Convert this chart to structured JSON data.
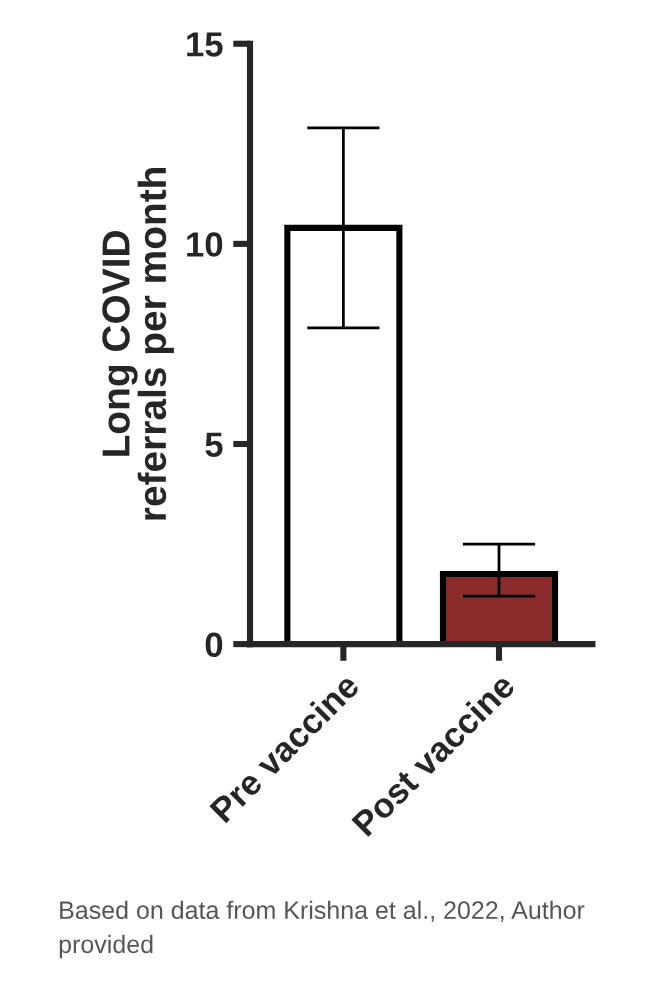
{
  "chart_data": {
    "type": "bar",
    "ylabel": "Long COVID\nreferrals per month",
    "categories": [
      "Pre vaccine",
      "Post vaccine"
    ],
    "values": [
      10.4,
      1.75
    ],
    "errors": [
      [
        7.9,
        12.9
      ],
      [
        1.2,
        2.5
      ]
    ],
    "colors": [
      "#ffffff",
      "#9b1b1b"
    ],
    "ylim": [
      0,
      15
    ],
    "yticks": [
      0,
      5,
      10,
      15
    ],
    "grid": false,
    "annotations": [
      "Based on data from Krishna et al., 2022, Author provided"
    ]
  }
}
